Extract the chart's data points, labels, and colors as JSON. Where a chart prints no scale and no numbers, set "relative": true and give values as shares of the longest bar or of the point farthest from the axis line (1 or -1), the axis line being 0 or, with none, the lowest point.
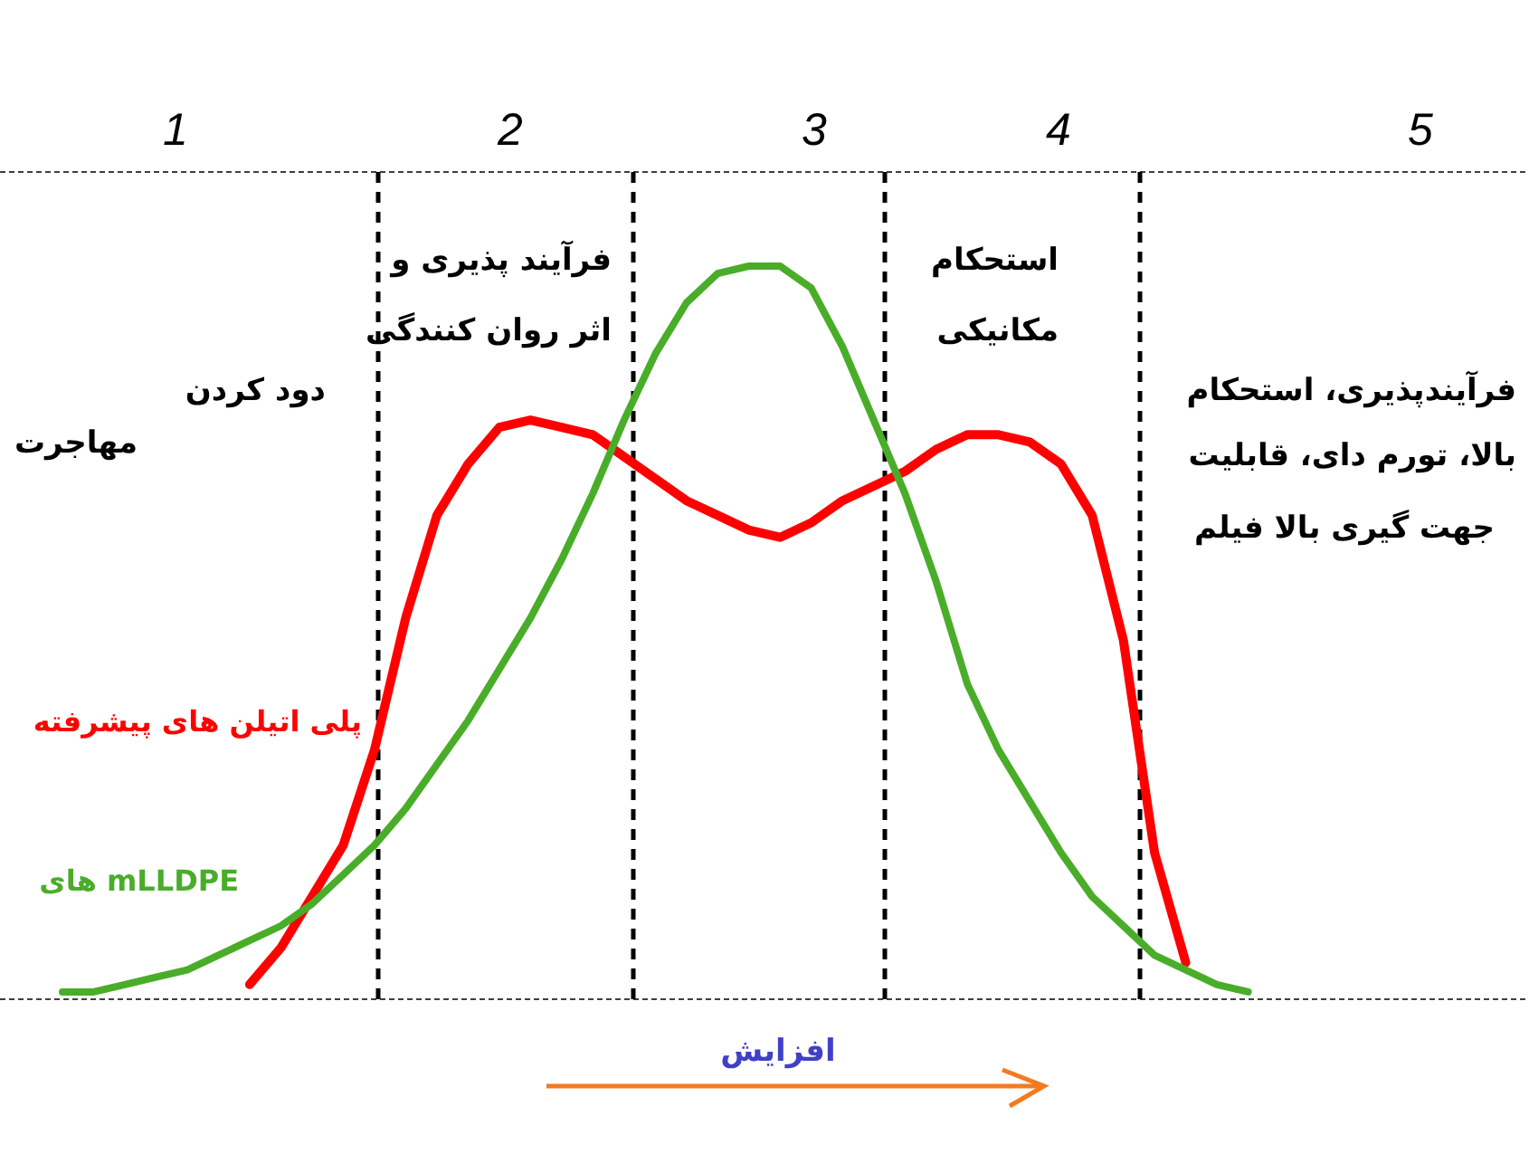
{
  "chart_data": {
    "type": "line",
    "relative": true,
    "grid": false,
    "legend": false,
    "marker": "none",
    "line_style": "solid",
    "categories": [
      null,
      null,
      null,
      null,
      null,
      null,
      null,
      null,
      null,
      null,
      null,
      null,
      null,
      null,
      null,
      null,
      null,
      null,
      null,
      null,
      null,
      null,
      null,
      null,
      null,
      null,
      null,
      null,
      null,
      null,
      null,
      null,
      null,
      null,
      null,
      null,
      null,
      null,
      null,
      null,
      null,
      null,
      null,
      null,
      null,
      null,
      null,
      null,
      null,
      null
    ],
    "series": [
      {
        "name": "پلی اتیلن های پیشرفته",
        "color": "#ff0000",
        "values": [
          null,
          null,
          null,
          null,
          null,
          null,
          null,
          null,
          0.02,
          0.07,
          0.14,
          0.21,
          0.34,
          0.52,
          0.66,
          0.73,
          0.78,
          0.79,
          0.78,
          0.77,
          0.74,
          0.71,
          0.68,
          0.66,
          0.64,
          0.63,
          0.65,
          0.68,
          0.7,
          0.72,
          0.75,
          0.77,
          0.77,
          0.76,
          0.73,
          0.66,
          0.49,
          0.2,
          0.05,
          null,
          null,
          null,
          null,
          null,
          null,
          null,
          null,
          null,
          null,
          null
        ]
      },
      {
        "name": "mLLDPE های",
        "color": "#4aad2a",
        "values": [
          null,
          null,
          0.01,
          0.01,
          0.02,
          0.03,
          0.04,
          0.06,
          0.08,
          0.1,
          0.13,
          0.17,
          0.21,
          0.26,
          0.32,
          0.38,
          0.45,
          0.52,
          0.6,
          0.69,
          0.79,
          0.88,
          0.95,
          0.99,
          1.0,
          1.0,
          0.97,
          0.89,
          0.79,
          0.69,
          0.57,
          0.43,
          0.34,
          0.27,
          0.2,
          0.14,
          0.1,
          0.06,
          0.04,
          0.02,
          0.01,
          null,
          null,
          null,
          null,
          null,
          null,
          null,
          null,
          null
        ]
      }
    ],
    "ref_lines": [
      {
        "axis": "x",
        "line_style": "dashed",
        "color": "#000000"
      },
      {
        "axis": "x",
        "line_style": "dashed",
        "color": "#000000"
      },
      {
        "axis": "x",
        "line_style": "dashed",
        "color": "#000000"
      },
      {
        "axis": "x",
        "line_style": "dashed",
        "color": "#000000"
      }
    ],
    "annotations": [
      "1",
      "2",
      "3",
      "4",
      "5",
      "مهاجرت",
      "دود کردن",
      "فرآیند پذیری و",
      "اثر روان کنندگی",
      "استحکام",
      "مکانیکی",
      "فرآیندپذیری، استحکام",
      "بالا، تورم دای، قابلیت",
      "جهت گیری بالا فیلم",
      "افزایش"
    ]
  }
}
